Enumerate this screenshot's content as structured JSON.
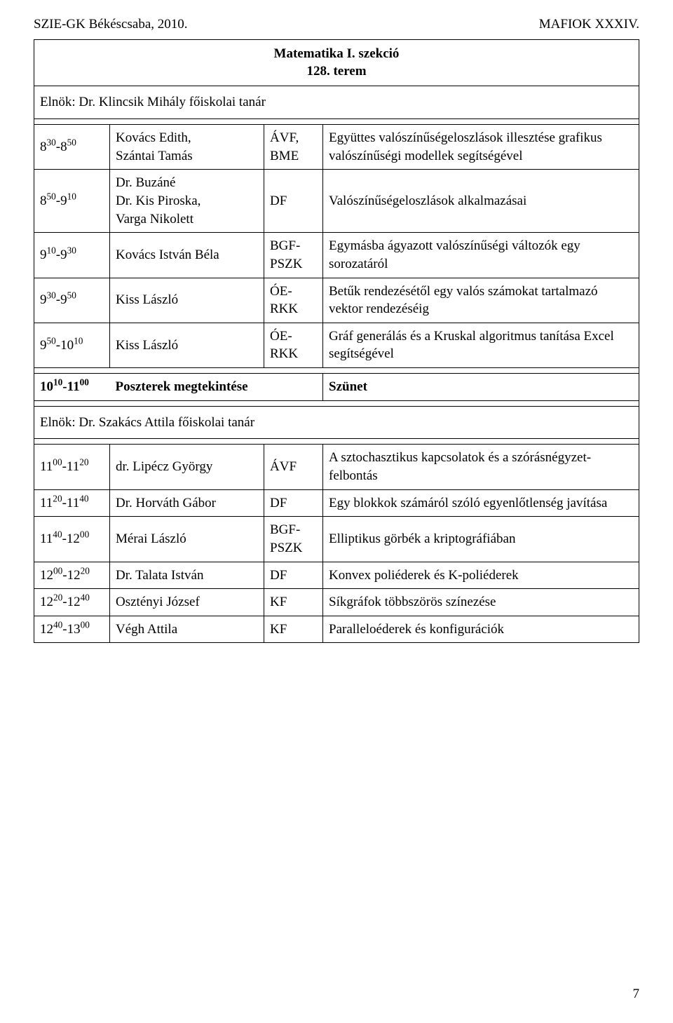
{
  "header": {
    "left": "SZIE-GK Békéscsaba, 2010.",
    "right": "MAFIOK XXXIV."
  },
  "title_line1": "Matematika I. szekció",
  "title_line2": "128. terem",
  "chair1_prefix": "Elnök: ",
  "chair1_name": "Dr. Klincsik Mihály  főiskolai tanár",
  "chair2_prefix": "Elnök: ",
  "chair2_name": "Dr. Szakács Attila  főiskolai tanár",
  "poster_row": {
    "time_base": "10",
    "time_sup1": "10",
    "time_dash": "-11",
    "time_sup2": "00",
    "label": "Poszterek megtekintése",
    "right": "Szünet"
  },
  "rows_a": [
    {
      "tb": "8",
      "ts1": "30",
      "td": "-8",
      "ts2": "50",
      "presenter": "Kovács Edith,\nSzántai Tamás",
      "inst": "ÁVF,\nBME",
      "topic": "Együttes valószínűségeloszlások illesztése grafikus valószínűségi modellek segítségével"
    },
    {
      "tb": "8",
      "ts1": "50",
      "td": "-9",
      "ts2": "10",
      "presenter": "Dr. Buzáné\nDr. Kis Piroska,\nVarga Nikolett",
      "inst": "DF",
      "topic": "Valószínűségeloszlások alkalmazásai"
    },
    {
      "tb": "9",
      "ts1": "10",
      "td": "-9",
      "ts2": "30",
      "presenter": "Kovács István Béla",
      "inst": "BGF-\nPSZK",
      "topic": "Egymásba ágyazott valószínűségi változók egy sorozatáról"
    },
    {
      "tb": "9",
      "ts1": "30",
      "td": "-9",
      "ts2": "50",
      "presenter": "Kiss László",
      "inst": "ÓE-\nRKK",
      "topic": "Betűk rendezésétől egy valós számokat tartalmazó vektor rendezéséig"
    },
    {
      "tb": "9",
      "ts1": "50",
      "td": "-10",
      "ts2": "10",
      "presenter": "Kiss László",
      "inst": "ÓE-\nRKK",
      "topic": "Gráf generálás és a Kruskal algoritmus tanítása Excel segítségével"
    }
  ],
  "rows_b": [
    {
      "tb": "11",
      "ts1": "00",
      "td": "-11",
      "ts2": "20",
      "presenter": "dr. Lipécz György",
      "inst": "ÁVF",
      "topic": "A sztochasztikus kapcsolatok és a szórásnégyzet-felbontás"
    },
    {
      "tb": "11",
      "ts1": "20",
      "td": "-11",
      "ts2": "40",
      "presenter": "Dr. Horváth Gábor",
      "inst": "DF",
      "topic": "Egy blokkok számáról szóló egyenlőtlenség javítása"
    },
    {
      "tb": "11",
      "ts1": "40",
      "td": "-12",
      "ts2": "00",
      "presenter": "Mérai László",
      "inst": "BGF-\nPSZK",
      "topic": "Elliptikus görbék a kriptográfiában"
    },
    {
      "tb": "12",
      "ts1": "00",
      "td": "-12",
      "ts2": "20",
      "presenter": "Dr. Talata István",
      "inst": "DF",
      "topic": "Konvex poliéderek és K-poliéderek"
    },
    {
      "tb": "12",
      "ts1": "20",
      "td": "-12",
      "ts2": "40",
      "presenter": "Osztényi József",
      "inst": "KF",
      "topic": "Síkgráfok többszörös színezése"
    },
    {
      "tb": "12",
      "ts1": "40",
      "td": "-13",
      "ts2": "00",
      "presenter": "Végh Attila",
      "inst": "KF",
      "topic": "Paralleloéderek és konfigurációk"
    }
  ],
  "page_number": "7"
}
